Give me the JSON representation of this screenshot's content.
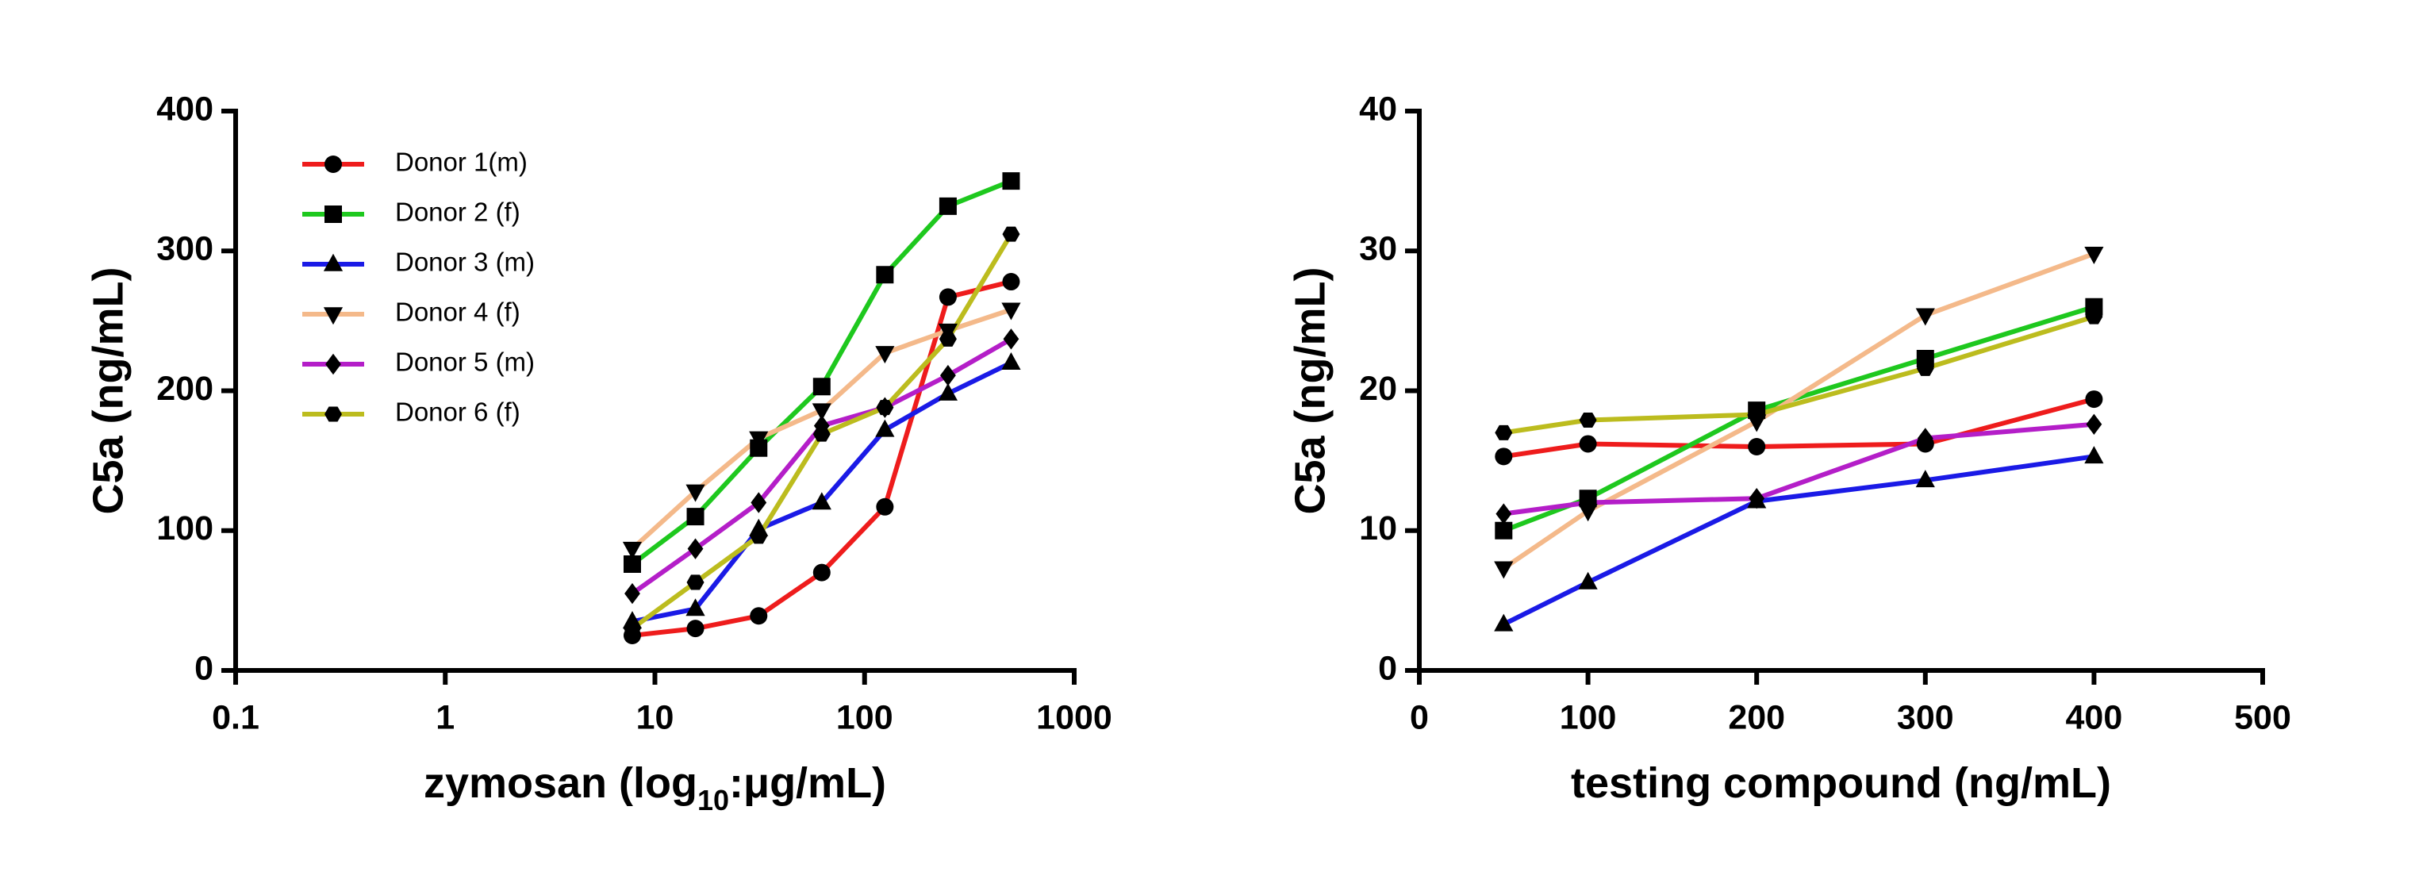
{
  "chart_data": [
    {
      "type": "line",
      "xscale": "log",
      "xlabel": [
        "zymosan (log",
        "10",
        ":μg/mL)"
      ],
      "ylabel": "C5a (ng/mL)",
      "x": [
        7.8,
        15.6,
        31.25,
        62.5,
        125,
        250,
        500
      ],
      "xlim": [
        0.1,
        1000
      ],
      "xticks": [
        0.1,
        1,
        10,
        100,
        1000
      ],
      "ylim": [
        0,
        400
      ],
      "yticks": [
        0,
        100,
        200,
        300,
        400
      ],
      "legend": "upper left",
      "series": [
        {
          "name": "Donor 1(m)",
          "color": "#ee1c1c",
          "marker": "circle",
          "values": [
            25,
            30,
            39,
            70,
            117,
            267,
            278
          ]
        },
        {
          "name": "Donor 2 (f)",
          "color": "#1ec81e",
          "marker": "square",
          "values": [
            76,
            110,
            159,
            203,
            283,
            332,
            350
          ]
        },
        {
          "name": "Donor 3 (m)",
          "color": "#1a1ae6",
          "marker": "triangle-up",
          "values": [
            35,
            44,
            101,
            120,
            172,
            198,
            220
          ]
        },
        {
          "name": "Donor 4 (f)",
          "color": "#f4b98a",
          "marker": "triangle-down",
          "values": [
            87,
            128,
            166,
            186,
            227,
            243,
            258
          ]
        },
        {
          "name": "Donor 5 (m)",
          "color": "#b41ec8",
          "marker": "diamond",
          "values": [
            55,
            87,
            120,
            175,
            188,
            211,
            237
          ]
        },
        {
          "name": "Donor 6 (f)",
          "color": "#bcbc1e",
          "marker": "hexagon",
          "values": [
            30,
            63,
            96,
            169,
            188,
            237,
            312
          ]
        }
      ]
    },
    {
      "type": "line",
      "xscale": "linear",
      "xlabel": [
        "testing compound (ng/mL)"
      ],
      "ylabel": "C5a (ng/mL)",
      "x": [
        50,
        100,
        200,
        300,
        400
      ],
      "xlim": [
        0,
        500
      ],
      "xticks": [
        0,
        100,
        200,
        300,
        400,
        500
      ],
      "ylim": [
        0,
        40
      ],
      "yticks": [
        0,
        10,
        20,
        30,
        40
      ],
      "series": [
        {
          "color": "#ee1c1c",
          "marker": "circle",
          "values": [
            15.3,
            16.2,
            16.0,
            16.2,
            19.4
          ]
        },
        {
          "color": "#1ec81e",
          "marker": "square",
          "values": [
            10.0,
            12.3,
            18.6,
            22.3,
            26.0
          ]
        },
        {
          "color": "#1a1ae6",
          "marker": "triangle-up",
          "values": [
            3.3,
            6.3,
            12.1,
            13.6,
            15.3
          ]
        },
        {
          "color": "#f4b98a",
          "marker": "triangle-down",
          "values": [
            7.3,
            11.4,
            17.8,
            25.4,
            29.8
          ]
        },
        {
          "color": "#b41ec8",
          "marker": "diamond",
          "values": [
            11.2,
            12.0,
            12.3,
            16.6,
            17.6
          ]
        },
        {
          "color": "#bcbc1e",
          "marker": "hexagon",
          "values": [
            17.0,
            17.9,
            18.3,
            21.6,
            25.3
          ]
        }
      ]
    }
  ]
}
